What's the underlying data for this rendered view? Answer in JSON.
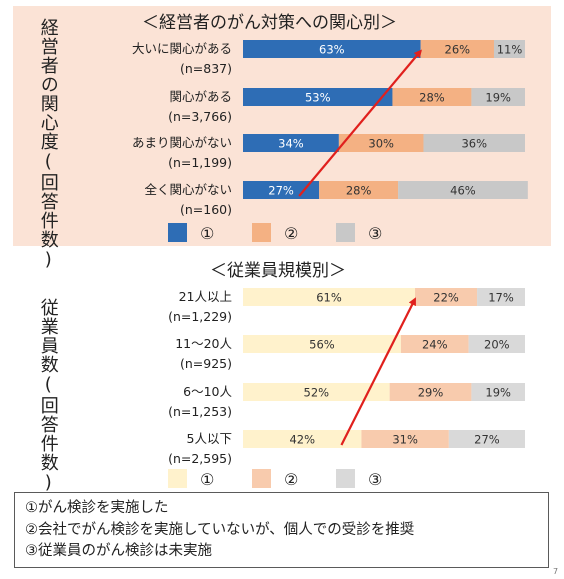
{
  "chart_data": [
    {
      "type": "bar",
      "stacked": true,
      "orientation": "horizontal",
      "title": "＜経営者のがん対策への関心別＞",
      "ylabel": "経営者の関心度(回答件数)",
      "categories": [
        {
          "label": "大いに関心がある",
          "n": "(n=837)"
        },
        {
          "label": "関心がある",
          "n": "(n=3,766)"
        },
        {
          "label": "あまり関心がない",
          "n": "(n=1,199)"
        },
        {
          "label": "全く関心がない",
          "n": "(n=160)"
        }
      ],
      "series": [
        {
          "name": "①",
          "color": "#2e6db5",
          "values": [
            63,
            53,
            34,
            27
          ]
        },
        {
          "name": "②",
          "color": "#f4b183",
          "values": [
            26,
            28,
            30,
            28
          ]
        },
        {
          "name": "③",
          "color": "#c8c8c8",
          "values": [
            11,
            19,
            36,
            46
          ]
        }
      ],
      "value_labels": [
        [
          "63%",
          "26%",
          "11%"
        ],
        [
          "53%",
          "28%",
          "19%"
        ],
        [
          "34%",
          "30%",
          "36%"
        ],
        [
          "27%",
          "28%",
          "46%"
        ]
      ],
      "xlim": [
        0,
        100
      ],
      "legend": "bottom",
      "arrow_color": "#e0201d"
    },
    {
      "type": "bar",
      "stacked": true,
      "orientation": "horizontal",
      "title": "＜従業員規模別＞",
      "ylabel": "従業員数(回答件数)",
      "categories": [
        {
          "label": "21人以上",
          "n": "(n=1,229)"
        },
        {
          "label": "11〜20人",
          "n": "(n=925)"
        },
        {
          "label": "6〜10人",
          "n": "(n=1,253)"
        },
        {
          "label": "5人以下",
          "n": "(n=2,595)"
        }
      ],
      "series": [
        {
          "name": "①",
          "color": "#fff2cc",
          "values": [
            61,
            56,
            52,
            42
          ]
        },
        {
          "name": "②",
          "color": "#f8cbad",
          "values": [
            22,
            24,
            29,
            31
          ]
        },
        {
          "name": "③",
          "color": "#d9d9d9",
          "values": [
            17,
            20,
            19,
            27
          ]
        }
      ],
      "value_labels": [
        [
          "61%",
          "22%",
          "17%"
        ],
        [
          "56%",
          "24%",
          "20%"
        ],
        [
          "52%",
          "29%",
          "19%"
        ],
        [
          "42%",
          "31%",
          "27%"
        ]
      ],
      "xlim": [
        0,
        100
      ],
      "legend": "bottom",
      "arrow_color": "#e0201d"
    }
  ],
  "notes": [
    "①がん検診を実施した",
    "②会社でがん検診を実施していないが、個人での受診を推奨",
    "③従業員のがん検診は未実施"
  ],
  "page_number": "7"
}
